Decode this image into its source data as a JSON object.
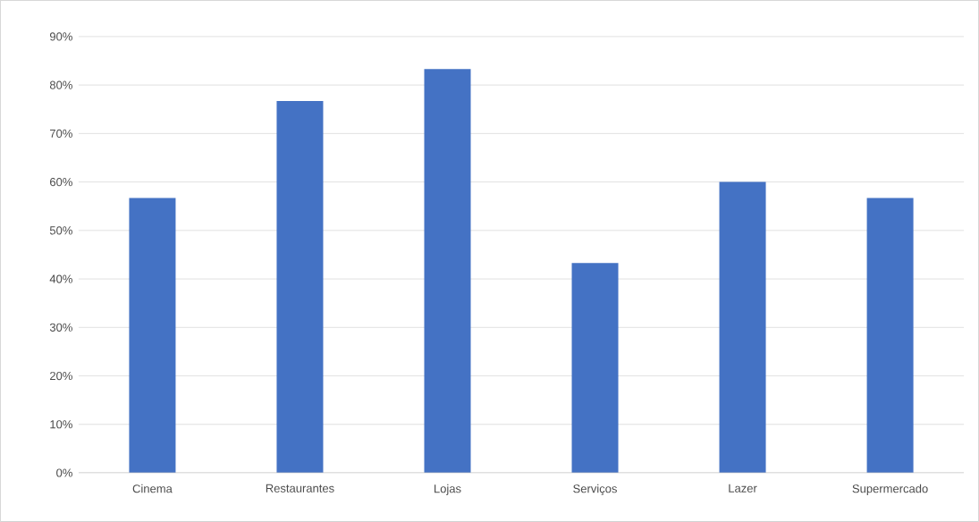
{
  "chart_data": {
    "type": "bar",
    "color": "#4472c4",
    "categories": [
      "Cinema",
      "Restaurantes",
      "Lojas",
      "Serviços",
      "Lazer",
      "Supermercado"
    ],
    "values": [
      56.7,
      76.7,
      83.3,
      43.3,
      60,
      56.7
    ],
    "ylim": [
      0,
      90
    ],
    "yticks": [
      {
        "value": 0,
        "label": "0%"
      },
      {
        "value": 10,
        "label": "10%"
      },
      {
        "value": 20,
        "label": "20%"
      },
      {
        "value": 30,
        "label": "30%"
      },
      {
        "value": 40,
        "label": "40%"
      },
      {
        "value": 50,
        "label": "50%"
      },
      {
        "value": 60,
        "label": "60%"
      },
      {
        "value": 70,
        "label": "70%"
      },
      {
        "value": 80,
        "label": "80%"
      },
      {
        "value": 90,
        "label": "90%"
      }
    ],
    "grid": "y"
  }
}
